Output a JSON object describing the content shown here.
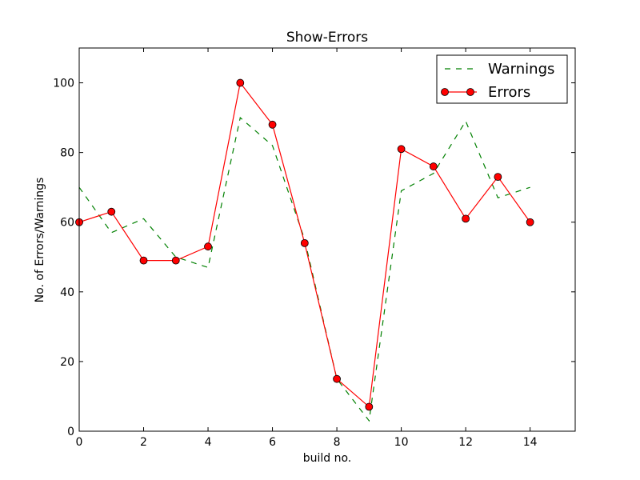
{
  "chart_data": {
    "type": "line",
    "title": "Show-Errors",
    "xlabel": "build no.",
    "ylabel": "No. of Errors/Warnings",
    "xlim": [
      0,
      15.4
    ],
    "ylim": [
      0,
      110
    ],
    "x_ticks": [
      0,
      2,
      4,
      6,
      8,
      10,
      12,
      14
    ],
    "y_ticks": [
      0,
      20,
      40,
      60,
      80,
      100
    ],
    "grid": false,
    "legend_position": "top-right",
    "x": [
      0,
      1,
      2,
      3,
      4,
      5,
      6,
      7,
      8,
      9,
      10,
      11,
      12,
      13,
      14
    ],
    "series": [
      {
        "name": "Warnings",
        "color": "#008000",
        "style": "dashed",
        "marker": "none",
        "values": [
          70,
          57,
          61,
          50,
          47,
          90,
          82,
          55,
          15,
          3,
          69,
          74,
          89,
          67,
          70
        ]
      },
      {
        "name": "Errors",
        "color": "#ff0000",
        "style": "solid",
        "marker": "circle",
        "values": [
          60,
          63,
          49,
          49,
          53,
          100,
          88,
          54,
          15,
          7,
          81,
          76,
          61,
          73,
          60
        ]
      }
    ]
  }
}
